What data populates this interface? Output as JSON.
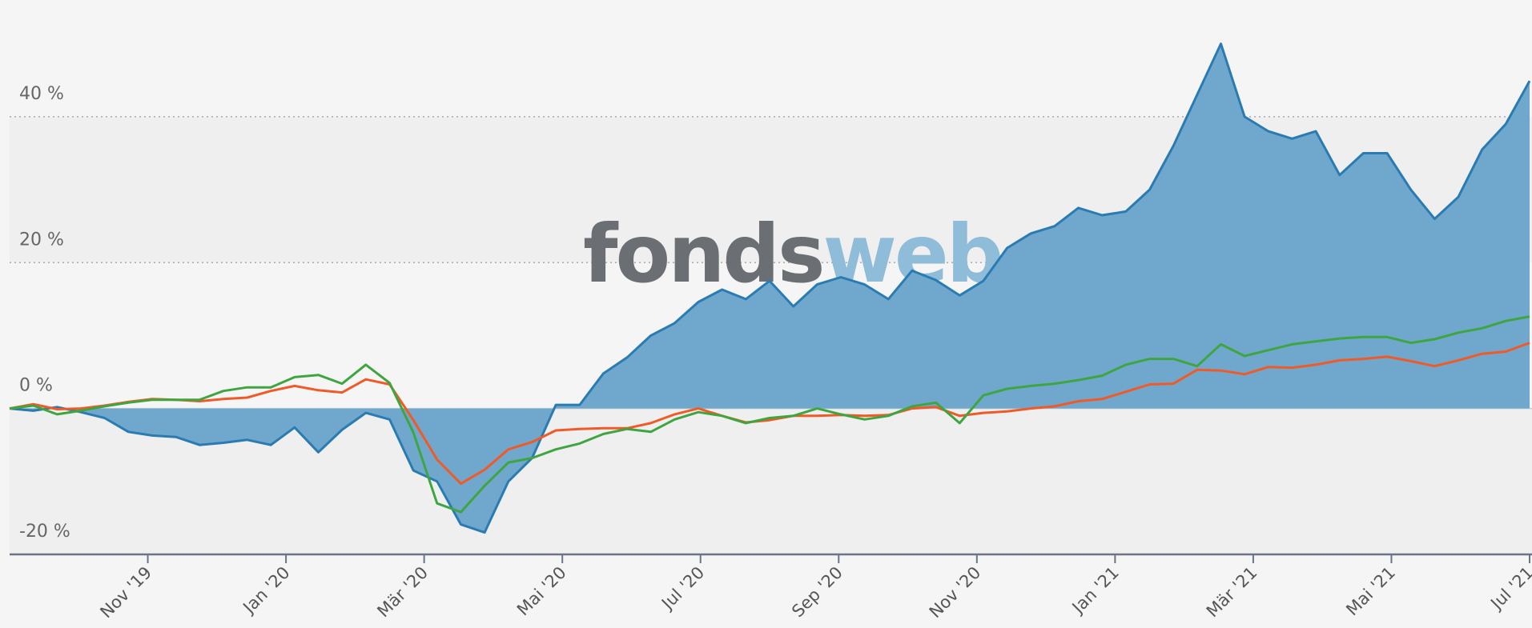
{
  "chart_data": {
    "type": "line",
    "watermark": [
      "fonds",
      "web"
    ],
    "xlim": [
      "2019-09",
      "2021-07"
    ],
    "xticks": [
      {
        "value": "2019-11",
        "label": "Nov '19"
      },
      {
        "value": "2020-01",
        "label": "Jan '20"
      },
      {
        "value": "2020-03",
        "label": "Mär '20"
      },
      {
        "value": "2020-05",
        "label": "Mai '20"
      },
      {
        "value": "2020-07",
        "label": "Jul '20"
      },
      {
        "value": "2020-09",
        "label": "Sep '20"
      },
      {
        "value": "2020-11",
        "label": "Nov '20"
      },
      {
        "value": "2021-01",
        "label": "Jan '21"
      },
      {
        "value": "2021-03",
        "label": "Mär '21"
      },
      {
        "value": "2021-05",
        "label": "Mai '21"
      },
      {
        "value": "2021-07",
        "label": "Jul '21"
      }
    ],
    "ylim": [
      -20,
      56
    ],
    "yticks": [
      {
        "value": -20,
        "label": "-20 %"
      },
      {
        "value": 0,
        "label": "0 %"
      },
      {
        "value": 20,
        "label": "20 %"
      },
      {
        "value": 40,
        "label": "40 %"
      }
    ],
    "grid": true,
    "series": [
      {
        "color": "#2b7bb3",
        "fill": "#6fa8cc",
        "values": [
          0,
          -0.3,
          0.2,
          -0.5,
          -1.3,
          -3.2,
          -3.7,
          -3.9,
          -5,
          -4.7,
          -4.3,
          -5,
          -2.6,
          -6,
          -2.9,
          -0.6,
          -1.5,
          -8.5,
          -10,
          -15.9,
          -17,
          -10,
          -6.8,
          0.5,
          0.5,
          4.8,
          7,
          10,
          11.7,
          14.6,
          16.3,
          15,
          17.5,
          14,
          17,
          18,
          17,
          15,
          18.9,
          17.6,
          15.5,
          17.5,
          22,
          24,
          25,
          27.5,
          26.5,
          27,
          30,
          36,
          43,
          50,
          40,
          38,
          37,
          38,
          32,
          35,
          35,
          30,
          26,
          29,
          35.5,
          39,
          44.9
        ]
      },
      {
        "color": "#f05a28",
        "values": [
          0,
          0.6,
          -0.1,
          0,
          0.4,
          0.9,
          1.3,
          1.2,
          1,
          1.3,
          1.5,
          2.4,
          3.1,
          2.5,
          2.2,
          4,
          3.3,
          -1.6,
          -7,
          -10.3,
          -8.4,
          -5.6,
          -4.6,
          -3,
          -2.8,
          -2.7,
          -2.7,
          -2,
          -0.8,
          0,
          -1,
          -1.9,
          -1.6,
          -1,
          -1,
          -0.9,
          -1,
          -0.9,
          0,
          0.2,
          -1,
          -0.6,
          -0.4,
          0,
          0.3,
          1,
          1.3,
          2.3,
          3.3,
          3.4,
          5.3,
          5.2,
          4.7,
          5.7,
          5.6,
          6,
          6.6,
          6.8,
          7.1,
          6.5,
          5.8,
          6.6,
          7.5,
          7.8,
          9
        ]
      },
      {
        "color": "#3fa541",
        "values": [
          0,
          0.4,
          -0.8,
          -0.3,
          0.3,
          0.8,
          1.2,
          1.2,
          1.2,
          2.4,
          2.9,
          2.9,
          4.3,
          4.6,
          3.4,
          6,
          3.5,
          -3.3,
          -13,
          -14.2,
          -10.6,
          -7.4,
          -6.8,
          -5.6,
          -4.8,
          -3.5,
          -2.8,
          -3.2,
          -1.5,
          -0.5,
          -1,
          -2,
          -1.3,
          -1,
          0,
          -0.8,
          -1.5,
          -1,
          0.3,
          0.8,
          -2,
          1.8,
          2.7,
          3.1,
          3.4,
          3.9,
          4.5,
          6,
          6.8,
          6.8,
          5.8,
          8.8,
          7.2,
          8,
          8.8,
          9.2,
          9.6,
          9.8,
          9.8,
          9,
          9.5,
          10.4,
          11,
          12,
          12.6
        ]
      }
    ]
  }
}
